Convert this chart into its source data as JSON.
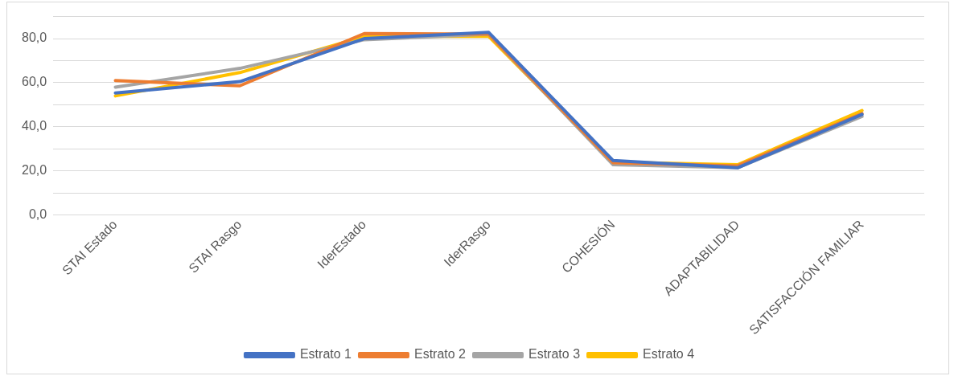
{
  "chart_data": {
    "type": "line",
    "categories": [
      "STAI Estado",
      "STAI Rasgo",
      "IderEstado",
      "IderRasgo",
      "COHESIÓN",
      "ADAPTABILIDAD",
      "SATISFACCIÓN FAMILIAR"
    ],
    "series": [
      {
        "name": "Estrato 1",
        "color": "#4472c4",
        "values": [
          55.3,
          60.5,
          80,
          82.8,
          24.7,
          21.4,
          45.6
        ]
      },
      {
        "name": "Estrato 2",
        "color": "#ed7d31",
        "values": [
          61,
          58.6,
          82.3,
          82,
          23.7,
          22.3,
          46
        ]
      },
      {
        "name": "Estrato 3",
        "color": "#a5a5a5",
        "values": [
          58,
          66.5,
          79.5,
          82,
          22.8,
          21.4,
          44.7
        ]
      },
      {
        "name": "Estrato 4",
        "color": "#ffc000",
        "values": [
          54,
          64.6,
          81,
          81,
          24,
          22.8,
          47.4
        ]
      }
    ],
    "ylim": [
      0,
      90
    ],
    "yticks": [
      {
        "value": 0,
        "label": "0,0"
      },
      {
        "value": 10,
        "label": null
      },
      {
        "value": 20,
        "label": "20,0"
      },
      {
        "value": 30,
        "label": null
      },
      {
        "value": 40,
        "label": "40,0"
      },
      {
        "value": 50,
        "label": null
      },
      {
        "value": 60,
        "label": "60,0"
      },
      {
        "value": 70,
        "label": null
      },
      {
        "value": 80,
        "label": "80,0"
      },
      {
        "value": 90,
        "label": null
      }
    ],
    "grid": "y",
    "legend": "bottom",
    "marker": "none",
    "line_style": "solid"
  }
}
